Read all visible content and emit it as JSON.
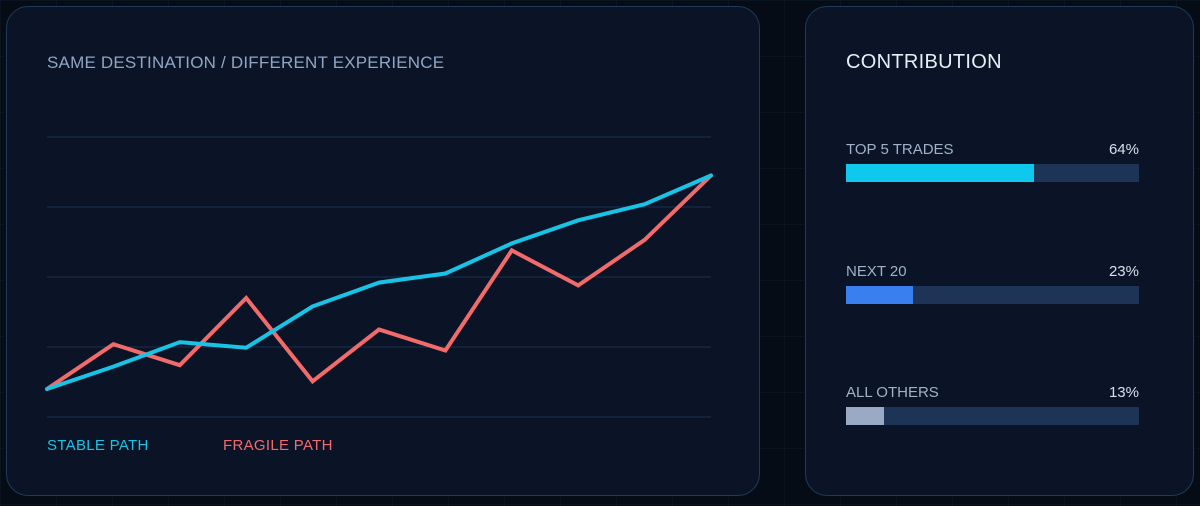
{
  "chart_card": {
    "title": "SAME DESTINATION / DIFFERENT EXPERIENCE"
  },
  "chart_data": {
    "type": "line",
    "title": "SAME DESTINATION / DIFFERENT EXPERIENCE",
    "xlabel": "",
    "ylabel": "",
    "x": [
      0,
      1,
      2,
      3,
      4,
      5,
      6,
      7,
      8,
      9,
      10
    ],
    "ylim": [
      0,
      4
    ],
    "grid": true,
    "legend_placement": "bottom-left",
    "series": [
      {
        "name": "STABLE PATH",
        "color": "#19c3e6",
        "values": [
          0.4,
          0.72,
          1.07,
          0.99,
          1.58,
          1.92,
          2.05,
          2.48,
          2.81,
          3.04,
          3.45
        ]
      },
      {
        "name": "FRAGILE PATH",
        "color": "#f26b6b",
        "values": [
          0.4,
          1.04,
          0.74,
          1.7,
          0.51,
          1.25,
          0.95,
          2.38,
          1.88,
          2.53,
          3.45
        ]
      }
    ]
  },
  "legend": {
    "stable_label": "STABLE PATH",
    "fragile_label": "FRAGILE PATH"
  },
  "contribution": {
    "title": "CONTRIBUTION",
    "items": [
      {
        "label": "TOP 5 TRADES",
        "value_text": "64%",
        "fraction": 0.64,
        "color": "#0fc8ee"
      },
      {
        "label": "NEXT 20",
        "value_text": "23%",
        "fraction": 0.23,
        "color": "#3a7ff0"
      },
      {
        "label": "ALL OTHERS",
        "value_text": "13%",
        "fraction": 0.13,
        "color": "#9aaac4"
      }
    ]
  }
}
